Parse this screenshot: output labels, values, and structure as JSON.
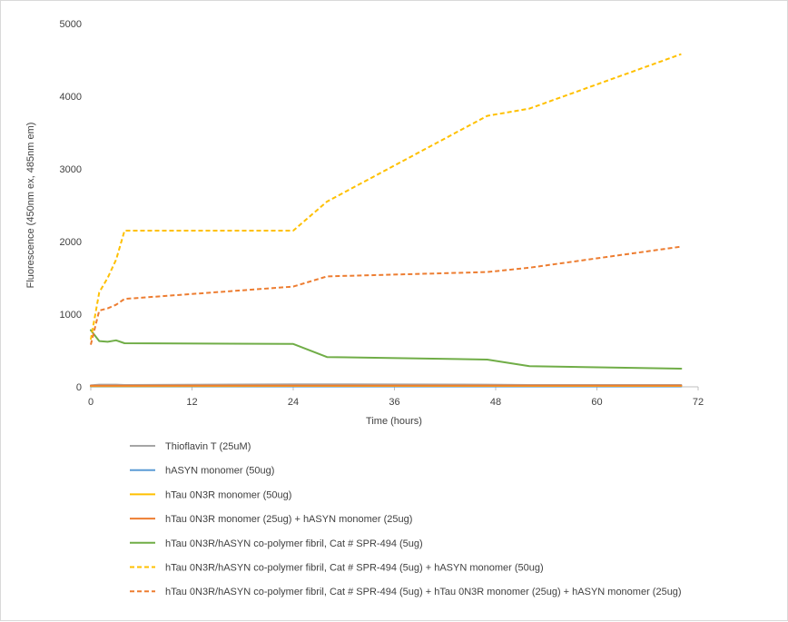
{
  "chart_data": {
    "type": "line",
    "title": "",
    "xlabel": "Time (hours)",
    "ylabel": "Fluorescence (450nm ex, 485nm em)",
    "xlim": [
      0,
      72
    ],
    "ylim": [
      0,
      5000
    ],
    "xticks": [
      0,
      12,
      24,
      36,
      48,
      60,
      72
    ],
    "yticks": [
      0,
      1000,
      2000,
      3000,
      4000,
      5000
    ],
    "grid": false,
    "legend_position": "bottom",
    "series": [
      {
        "name": "Thioflavin T (25uM)",
        "color": "#a5a5a5",
        "dash": "solid",
        "x": [
          0,
          1,
          2,
          3,
          4,
          24,
          28,
          47,
          52,
          70
        ],
        "y": [
          20,
          30,
          30,
          30,
          25,
          35,
          35,
          30,
          25,
          25
        ]
      },
      {
        "name": "hASYN monomer (50ug)",
        "color": "#5b9bd5",
        "dash": "solid",
        "x": [
          0,
          1,
          2,
          3,
          4,
          24,
          28,
          47,
          52,
          70
        ],
        "y": [
          5,
          5,
          5,
          5,
          5,
          5,
          5,
          5,
          5,
          5
        ]
      },
      {
        "name": "hTau 0N3R monomer (50ug)",
        "color": "#ffc000",
        "dash": "solid",
        "x": [
          0,
          1,
          2,
          3,
          4,
          24,
          28,
          47,
          52,
          70
        ],
        "y": [
          10,
          10,
          10,
          10,
          10,
          12,
          12,
          12,
          12,
          12
        ]
      },
      {
        "name": "hTau 0N3R monomer (25ug) + hASYN monomer (25ug)",
        "color": "#ed7d31",
        "dash": "solid",
        "x": [
          0,
          1,
          2,
          3,
          4,
          24,
          28,
          47,
          52,
          70
        ],
        "y": [
          15,
          15,
          15,
          15,
          15,
          18,
          18,
          18,
          18,
          18
        ]
      },
      {
        "name": "hTau 0N3R/hASYN co-polymer fibril, Cat # SPR-494 (5ug)",
        "color": "#70ad47",
        "dash": "solid",
        "x": [
          0,
          1,
          2,
          3,
          4,
          24,
          28,
          47,
          52,
          70
        ],
        "y": [
          780,
          630,
          620,
          640,
          600,
          590,
          410,
          375,
          285,
          250
        ]
      },
      {
        "name": "hTau 0N3R/hASYN co-polymer fibril, Cat # SPR-494 (5ug) + hASYN monomer (50ug)",
        "color": "#ffc000",
        "dash": "dashed",
        "x": [
          0,
          1,
          2,
          3,
          4,
          24,
          28,
          47,
          52,
          70
        ],
        "y": [
          650,
          1300,
          1500,
          1750,
          2150,
          2150,
          2550,
          3730,
          3830,
          4580
        ]
      },
      {
        "name": "hTau 0N3R/hASYN co-polymer fibril, Cat # SPR-494 (5ug) + hTau 0N3R monomer (25ug) + hASYN monomer (25ug)",
        "color": "#ed7d31",
        "dash": "dashed",
        "x": [
          0,
          1,
          2,
          3,
          4,
          24,
          28,
          47,
          52,
          70
        ],
        "y": [
          580,
          1050,
          1080,
          1130,
          1210,
          1380,
          1520,
          1580,
          1640,
          1930
        ]
      }
    ]
  }
}
